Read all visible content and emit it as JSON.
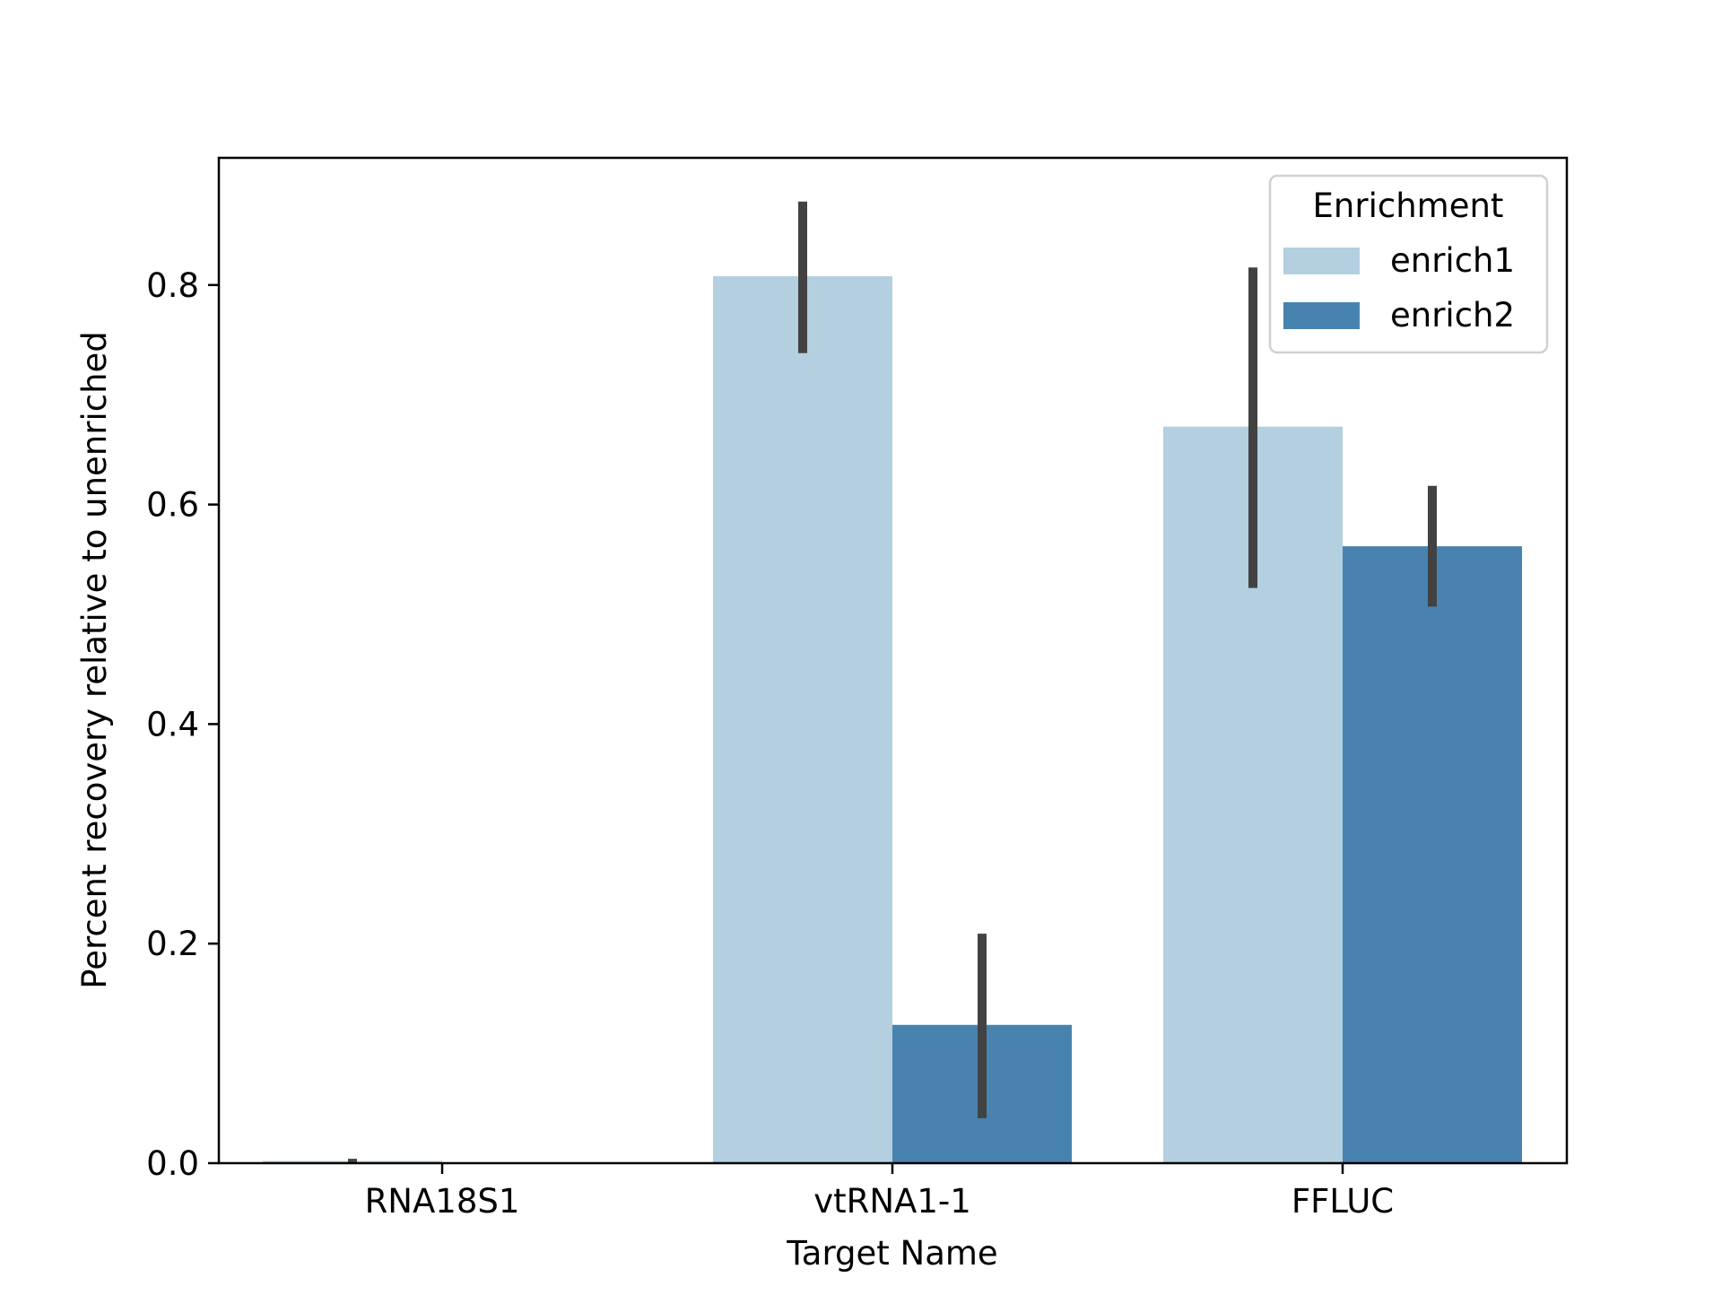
{
  "chart_data": {
    "type": "bar",
    "xlabel": "Target Name",
    "ylabel": "Percent recovery relative to unenriched",
    "categories": [
      "RNA18S1",
      "vtRNA1-1",
      "FFLUC"
    ],
    "ylim": [
      0,
      0.92
    ],
    "yticks": [
      0.0,
      0.2,
      0.4,
      0.6,
      0.8
    ],
    "ytick_labels": [
      "0.0",
      "0.2",
      "0.4",
      "0.6",
      "0.8"
    ],
    "grid": false,
    "legend": {
      "title": "Enrichment",
      "placement": "top-right"
    },
    "series": [
      {
        "name": "enrich1",
        "color": "#b3cfe0",
        "values": [
          0.002,
          0.808,
          0.671
        ],
        "error_low": [
          0.0,
          0.738,
          0.524
        ],
        "error_high": [
          0.004,
          0.876,
          0.816
        ]
      },
      {
        "name": "enrich2",
        "color": "#4883b0",
        "values": [
          null,
          0.126,
          0.562
        ],
        "error_low": [
          null,
          0.041,
          0.507
        ],
        "error_high": [
          null,
          0.209,
          0.617
        ]
      }
    ],
    "errorbar_color": "#424242"
  }
}
